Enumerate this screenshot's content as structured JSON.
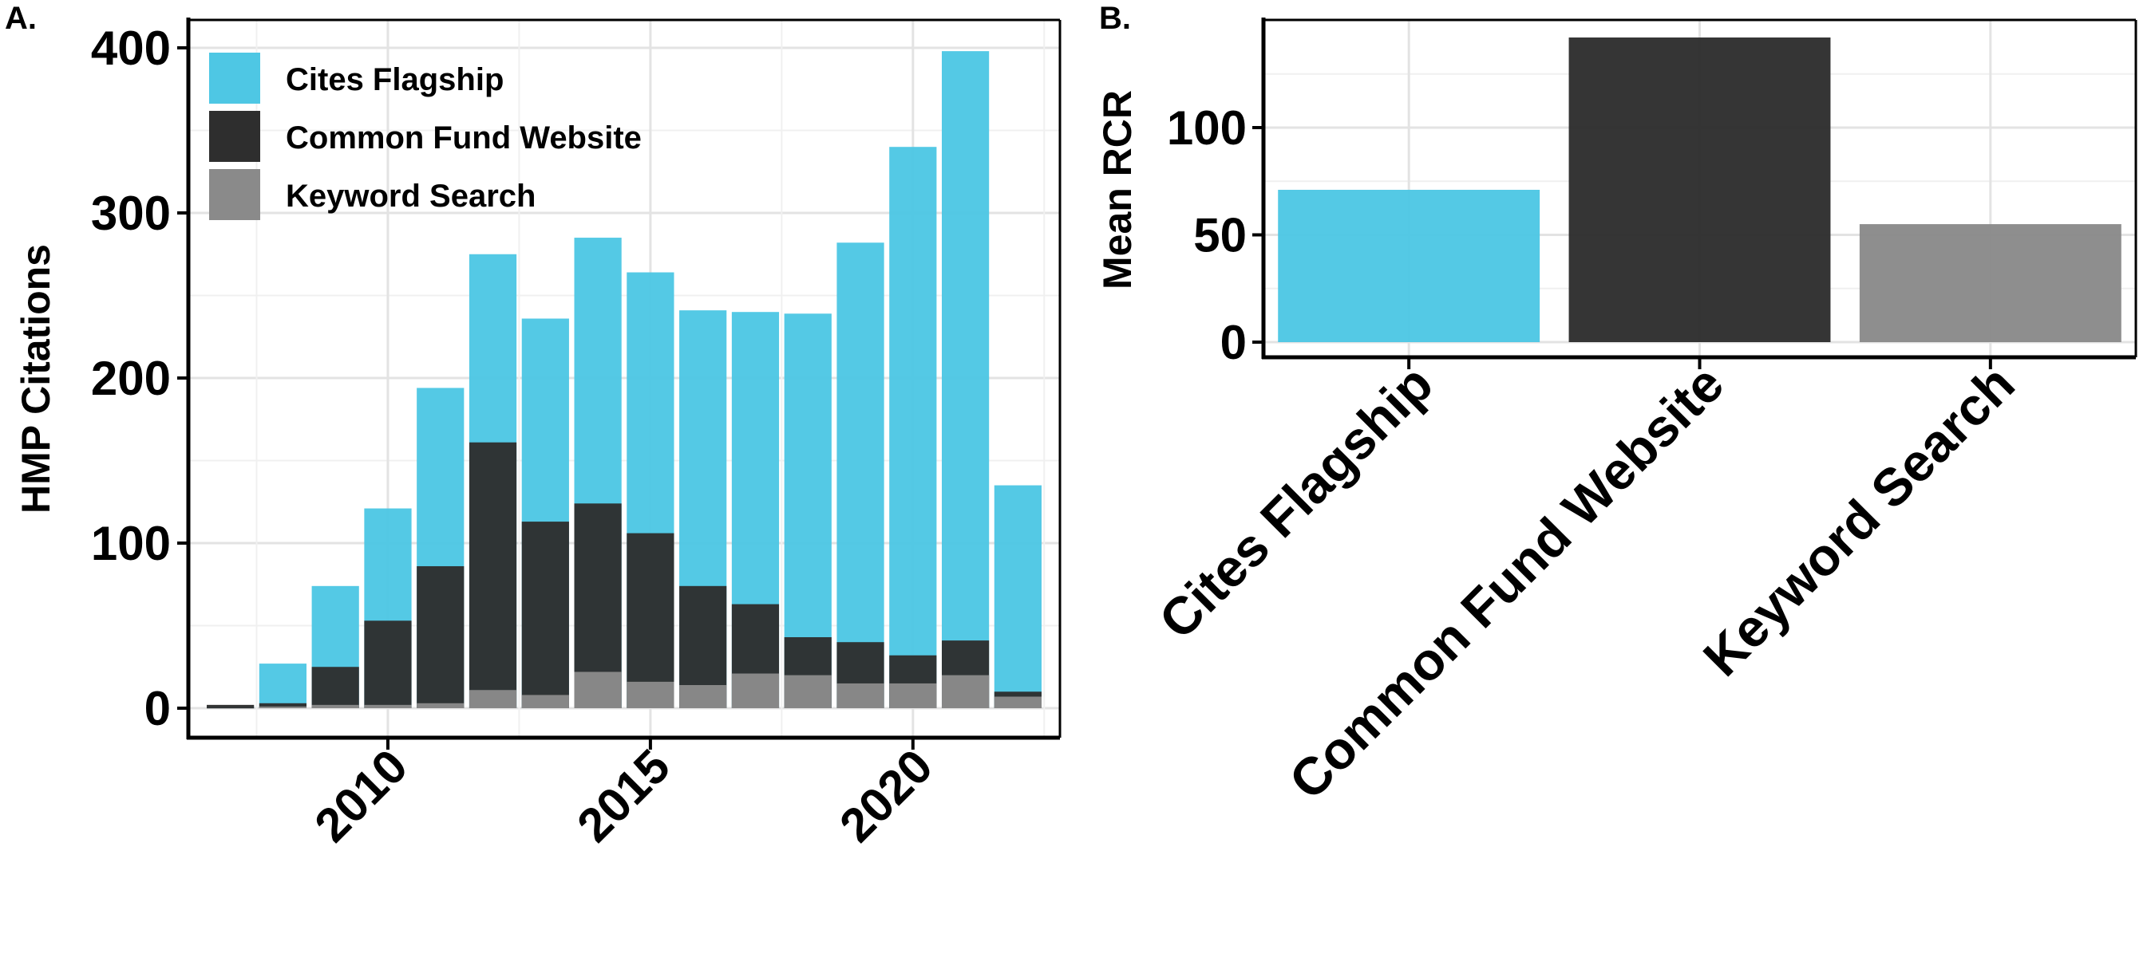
{
  "panels": [
    {
      "letter": "A.",
      "chart_data": {
        "type": "bar",
        "stacked": true,
        "overlaid": true,
        "title": "",
        "xlabel": "",
        "ylabel": "HMP Citations",
        "ylim": [
          0,
          420
        ],
        "yticks": [
          0,
          100,
          200,
          300,
          400
        ],
        "xticks": [
          2010,
          2015,
          2020
        ],
        "xlim": [
          2006.2,
          2022.8
        ],
        "grid": true,
        "legend": "top-left",
        "x": [
          2007,
          2008,
          2009,
          2010,
          2011,
          2012,
          2013,
          2014,
          2015,
          2016,
          2017,
          2018,
          2019,
          2020,
          2021,
          2022
        ],
        "series": [
          {
            "name": "Cites Flagship",
            "color": "#4EC7E4",
            "values": [
              1,
              27,
              74,
              121,
              194,
              275,
              236,
              285,
              264,
              241,
              240,
              239,
              282,
              340,
              398,
              135
            ]
          },
          {
            "name": "Common Fund Website",
            "color": "#2E2E2E",
            "values": [
              2,
              3,
              25,
              53,
              86,
              161,
              113,
              124,
              106,
              74,
              63,
              43,
              40,
              32,
              41,
              10
            ]
          },
          {
            "name": "Keyword Search",
            "color": "#8A8A8A",
            "values": [
              0,
              1,
              2,
              2,
              3,
              11,
              8,
              22,
              16,
              14,
              21,
              20,
              15,
              15,
              20,
              7
            ]
          }
        ]
      }
    },
    {
      "letter": "B.",
      "chart_data": {
        "type": "bar",
        "title": "",
        "xlabel": "",
        "ylabel": "Mean RCR",
        "ylim": [
          -7,
          143
        ],
        "yticks": [
          0,
          50,
          100
        ],
        "grid": true,
        "categories": [
          "Cites Flagship",
          "Common Fund Website",
          "Keyword Search"
        ],
        "values": [
          71,
          142,
          55
        ],
        "colors": [
          "#4EC7E4",
          "#2E2E2E",
          "#8A8A8A"
        ]
      }
    }
  ]
}
